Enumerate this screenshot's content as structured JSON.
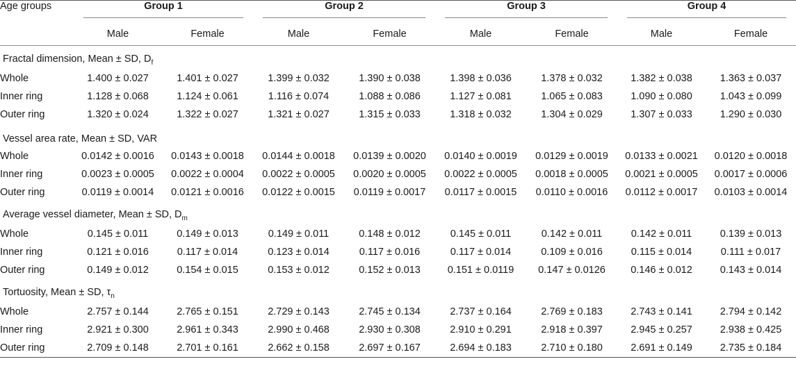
{
  "header": {
    "age_groups_label": "Age groups",
    "groups": [
      "Group 1",
      "Group 2",
      "Group 3",
      "Group 4"
    ],
    "sexes": [
      "Male",
      "Female"
    ]
  },
  "sections": [
    {
      "title": "Fractal dimension, Mean ± SD, D",
      "symbol_sub": "f",
      "rows": [
        {
          "label": "Whole",
          "values": [
            "1.400 ± 0.027",
            "1.401 ± 0.027",
            "1.399 ± 0.032",
            "1.390 ± 0.038",
            "1.398 ± 0.036",
            "1.378 ± 0.032",
            "1.382 ± 0.038",
            "1.363 ± 0.037"
          ]
        },
        {
          "label": "Inner ring",
          "values": [
            "1.128 ± 0.068",
            "1.124 ± 0.061",
            "1.116 ± 0.074",
            "1.088 ± 0.086",
            "1.127 ± 0.081",
            "1.065 ± 0.083",
            "1.090 ± 0.080",
            "1.043 ± 0.099"
          ]
        },
        {
          "label": "Outer ring",
          "values": [
            "1.320 ± 0.024",
            "1.322 ± 0.027",
            "1.321 ± 0.027",
            "1.315 ± 0.033",
            "1.318 ± 0.032",
            "1.304 ± 0.029",
            "1.307 ± 0.033",
            "1.290 ± 0.030"
          ]
        }
      ]
    },
    {
      "title": "Vessel area rate, Mean ± SD, VAR",
      "symbol_sub": "",
      "rows": [
        {
          "label": "Whole",
          "values": [
            "0.0142 ± 0.0016",
            "0.0143 ± 0.0018",
            "0.0144 ± 0.0018",
            "0.0139 ± 0.0020",
            "0.0140 ± 0.0019",
            "0.0129 ± 0.0019",
            "0.0133 ± 0.0021",
            "0.0120 ± 0.0018"
          ]
        },
        {
          "label": "Inner ring",
          "values": [
            "0.0023 ± 0.0005",
            "0.0022 ± 0.0004",
            "0.0022 ± 0.0005",
            "0.0020 ± 0.0005",
            "0.0022 ± 0.0005",
            "0.0018 ± 0.0005",
            "0.0021 ± 0.0005",
            "0.0017 ± 0.0006"
          ]
        },
        {
          "label": "Outer ring",
          "values": [
            "0.0119 ± 0.0014",
            "0.0121 ± 0.0016",
            "0.0122 ± 0.0015",
            "0.0119 ± 0.0017",
            "0.0117 ± 0.0015",
            "0.0110 ± 0.0016",
            "0.0112 ± 0.0017",
            "0.0103 ± 0.0014"
          ]
        }
      ]
    },
    {
      "title": "Average vessel diameter, Mean ± SD, D",
      "symbol_sub": "m",
      "rows": [
        {
          "label": "Whole",
          "values": [
            "0.145 ± 0.011",
            "0.149 ± 0.013",
            "0.149 ± 0.011",
            "0.148 ± 0.012",
            "0.145 ± 0.011",
            "0.142 ± 0.011",
            "0.142 ± 0.011",
            "0.139 ± 0.013"
          ]
        },
        {
          "label": "Inner ring",
          "values": [
            "0.121 ± 0.016",
            "0.117 ± 0.014",
            "0.123 ± 0.014",
            "0.117 ± 0.016",
            "0.117 ± 0.014",
            "0.109 ± 0.016",
            "0.115 ± 0.014",
            "0.111 ± 0.017"
          ]
        },
        {
          "label": "Outer ring",
          "values": [
            "0.149 ± 0.012",
            "0.154 ± 0.015",
            "0.153 ± 0.012",
            "0.152 ± 0.013",
            "0.151 ± 0.0119",
            "0.147 ± 0.0126",
            "0.146 ± 0.012",
            "0.143 ± 0.014"
          ]
        }
      ]
    },
    {
      "title": "Tortuosity, Mean ± SD, τ",
      "symbol_sub": "n",
      "rows": [
        {
          "label": "Whole",
          "values": [
            "2.757 ± 0.144",
            "2.765 ± 0.151",
            "2.729 ± 0.143",
            "2.745 ± 0.134",
            "2.737 ± 0.164",
            "2.769 ± 0.183",
            "2.743 ± 0.141",
            "2.794 ± 0.142"
          ]
        },
        {
          "label": "Inner ring",
          "values": [
            "2.921 ± 0.300",
            "2.961 ± 0.343",
            "2.990 ± 0.468",
            "2.930 ± 0.308",
            "2.910 ± 0.291",
            "2.918 ± 0.397",
            "2.945 ± 0.257",
            "2.938 ± 0.425"
          ]
        },
        {
          "label": "Outer ring",
          "values": [
            "2.709 ± 0.148",
            "2.701 ± 0.161",
            "2.662 ± 0.158",
            "2.697 ± 0.167",
            "2.694 ± 0.183",
            "2.710 ± 0.180",
            "2.691 ± 0.149",
            "2.735 ± 0.184"
          ]
        }
      ]
    }
  ]
}
